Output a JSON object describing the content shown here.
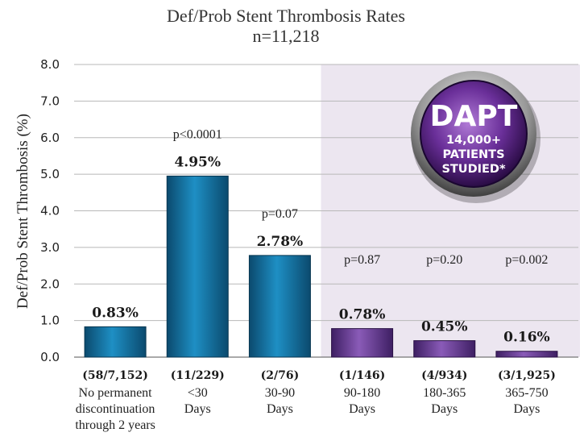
{
  "chart_data": {
    "type": "bar",
    "title": "Def/Prob Stent Thrombosis Rates",
    "subtitle": "n=11,218",
    "ylabel": "Def/Prob Stent Thrombosis (%)",
    "xlabel": "",
    "ylim": [
      0,
      8
    ],
    "yticks": [
      "0.0",
      "1.0",
      "2.0",
      "3.0",
      "4.0",
      "5.0",
      "6.0",
      "7.0",
      "8.0"
    ],
    "grid": "horizontal",
    "categories": [
      {
        "count": "(58/7,152)",
        "lines": [
          "No permanent",
          "discontinuation",
          "through 2 years"
        ]
      },
      {
        "count": "(11/229)",
        "lines": [
          "<30",
          "Days"
        ]
      },
      {
        "count": "(2/76)",
        "lines": [
          "30-90",
          "Days"
        ]
      },
      {
        "count": "(1/146)",
        "lines": [
          "90-180",
          "Days"
        ]
      },
      {
        "count": "(4/934)",
        "lines": [
          "180-365",
          "Days"
        ]
      },
      {
        "count": "(3/1,925)",
        "lines": [
          "365-750",
          "Days"
        ]
      }
    ],
    "values": [
      0.83,
      4.95,
      2.78,
      0.78,
      0.45,
      0.16
    ],
    "value_labels": [
      "0.83%",
      "4.95%",
      "2.78%",
      "0.78%",
      "0.45%",
      "0.16%"
    ],
    "p_values": [
      "",
      "p<0.0001",
      "p=0.07",
      "p=0.87",
      "p=0.20",
      "p=0.002"
    ],
    "bar_groups": [
      "blue",
      "blue",
      "blue",
      "purple",
      "purple",
      "purple"
    ],
    "colors": {
      "blue_dark": "#0b4a6e",
      "blue_light": "#1e8fc4",
      "purple_dark": "#3e1f63",
      "purple_light": "#8a5bb8",
      "shade": "#ece6f0",
      "grid": "#b8b8b8"
    }
  },
  "badge": {
    "big": "DAPT",
    "lines": [
      "14,000+",
      "PATIENTS",
      "STUDIED*"
    ]
  }
}
